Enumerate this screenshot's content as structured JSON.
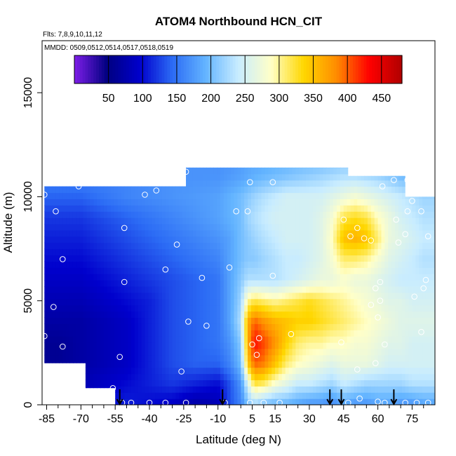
{
  "chart_data": {
    "type": "heatmap",
    "title": "ATOM4 Northbound HCN_CIT",
    "flights_note": "Flts: 7,8,9,10,11,12",
    "dates_note": "MMDD: 0509,0512,0514,0517,0518,0519",
    "xlabel": "Latitude (deg N)",
    "ylabel": "Altitude (m)",
    "xlim": [
      -87,
      85
    ],
    "ylim": [
      0,
      17500
    ],
    "x_tick_labels": [
      -85,
      -70,
      -55,
      -40,
      -25,
      -10,
      5,
      15,
      30,
      45,
      60,
      75
    ],
    "x_minor_ticks": [
      -80,
      -75,
      -65,
      -60,
      -50,
      -45,
      -35,
      -30,
      -20,
      -15,
      -5,
      0,
      10,
      20,
      25,
      35,
      40,
      50,
      55,
      65,
      70,
      80
    ],
    "y_ticks": [
      0,
      5000,
      10000,
      15000
    ],
    "colorbar": {
      "ticks": [
        50,
        100,
        150,
        200,
        250,
        300,
        350,
        400,
        450
      ],
      "range": [
        0,
        480
      ],
      "colors": [
        "#7e1ee8",
        "#000080",
        "#0000cd",
        "#2c6cf5",
        "#63b4ff",
        "#c8ecff",
        "#ffffc8",
        "#ffd700",
        "#ff8c00",
        "#ff0000",
        "#b00000"
      ]
    },
    "grid": false,
    "legend": "colorbar top",
    "lat_nodes": [
      -86,
      -80,
      -70,
      -60,
      -50,
      -40,
      -30,
      -20,
      -10,
      -5,
      0,
      3,
      6,
      10,
      15,
      20,
      25,
      30,
      35,
      40,
      45,
      50,
      55,
      60,
      65,
      70,
      75,
      80
    ],
    "alt_nodes_m": [
      0,
      1000,
      2000,
      3000,
      4000,
      5000,
      6000,
      7000,
      8000,
      9000,
      10000,
      11000,
      12000
    ],
    "values_ppt": [
      [
        80,
        80,
        90,
        100,
        110,
        100,
        90,
        70,
        80,
        130,
        160,
        200,
        220,
        200,
        190,
        190,
        180,
        170,
        170,
        160,
        180,
        170,
        170,
        180,
        180,
        170,
        170,
        180
      ],
      [
        70,
        70,
        80,
        90,
        100,
        110,
        120,
        110,
        100,
        130,
        170,
        250,
        320,
        310,
        280,
        260,
        240,
        240,
        230,
        220,
        240,
        230,
        220,
        220,
        220,
        220,
        230,
        230
      ],
      [
        60,
        60,
        70,
        80,
        90,
        110,
        130,
        140,
        140,
        160,
        200,
        340,
        400,
        390,
        350,
        310,
        290,
        280,
        270,
        260,
        270,
        270,
        270,
        260,
        250,
        250,
        250,
        250
      ],
      [
        60,
        60,
        70,
        80,
        90,
        110,
        130,
        140,
        150,
        170,
        210,
        360,
        430,
        410,
        380,
        340,
        310,
        300,
        300,
        290,
        290,
        280,
        280,
        270,
        260,
        260,
        250,
        250
      ],
      [
        70,
        70,
        70,
        80,
        90,
        110,
        130,
        140,
        150,
        180,
        230,
        360,
        400,
        380,
        360,
        350,
        340,
        340,
        330,
        320,
        310,
        300,
        290,
        280,
        270,
        260,
        260,
        260
      ],
      [
        80,
        80,
        80,
        90,
        100,
        110,
        130,
        140,
        150,
        180,
        220,
        300,
        320,
        310,
        300,
        310,
        320,
        330,
        320,
        310,
        300,
        290,
        280,
        270,
        260,
        260,
        250,
        250
      ],
      [
        90,
        90,
        90,
        100,
        110,
        120,
        130,
        140,
        150,
        180,
        210,
        230,
        230,
        230,
        230,
        240,
        250,
        260,
        270,
        270,
        280,
        270,
        270,
        260,
        250,
        240,
        240,
        240
      ],
      [
        100,
        100,
        100,
        110,
        120,
        130,
        140,
        150,
        160,
        180,
        200,
        210,
        210,
        220,
        230,
        240,
        240,
        250,
        260,
        280,
        310,
        310,
        300,
        280,
        260,
        250,
        240,
        230
      ],
      [
        110,
        110,
        110,
        120,
        130,
        140,
        150,
        160,
        170,
        180,
        200,
        210,
        220,
        230,
        240,
        250,
        250,
        250,
        260,
        290,
        350,
        360,
        350,
        310,
        270,
        260,
        250,
        240
      ],
      [
        120,
        120,
        120,
        130,
        140,
        150,
        160,
        170,
        180,
        190,
        200,
        220,
        230,
        240,
        250,
        250,
        250,
        250,
        260,
        280,
        320,
        330,
        320,
        290,
        270,
        250,
        240,
        230
      ],
      [
        140,
        140,
        140,
        150,
        160,
        165,
        170,
        175,
        180,
        190,
        200,
        210,
        220,
        230,
        240,
        250,
        250,
        250,
        250,
        260,
        270,
        280,
        270,
        260,
        250,
        240,
        230,
        220
      ],
      [
        160,
        160,
        160,
        160,
        160,
        165,
        170,
        170,
        170,
        175,
        180,
        185,
        190,
        195,
        200,
        205,
        210,
        215,
        220,
        225,
        230,
        230,
        225,
        220,
        210,
        200,
        195,
        190
      ],
      [
        170,
        170,
        170,
        170,
        170,
        170,
        170,
        170,
        170,
        170,
        175,
        180,
        180,
        180,
        185,
        185,
        190,
        190,
        190,
        195,
        200,
        200,
        195,
        190,
        185,
        180,
        180,
        180
      ]
    ],
    "data_coverage_bottom_m": [
      {
        "from": -86,
        "to": -68,
        "alt": 2000
      },
      {
        "from": -68,
        "to": -55,
        "alt": 800
      },
      {
        "from": -55,
        "to": 85,
        "alt": 0
      }
    ],
    "data_coverage_top_m": [
      {
        "from": -86,
        "to": -24,
        "alt": 10500
      },
      {
        "from": -24,
        "to": 47,
        "alt": 11400
      },
      {
        "from": 47,
        "to": 72,
        "alt": 11000
      },
      {
        "from": 72,
        "to": 85,
        "alt": 10000
      }
    ],
    "sample_points": [
      {
        "lat": -86,
        "alt": 10100
      },
      {
        "lat": -81,
        "alt": 9300
      },
      {
        "lat": -78,
        "alt": 7000
      },
      {
        "lat": -82,
        "alt": 4700
      },
      {
        "lat": -78,
        "alt": 2800
      },
      {
        "lat": -78,
        "alt": 1300
      },
      {
        "lat": -86,
        "alt": 3300
      },
      {
        "lat": -71,
        "alt": 10500
      },
      {
        "lat": -56,
        "alt": 800
      },
      {
        "lat": -53,
        "alt": 2300
      },
      {
        "lat": -51,
        "alt": 8500
      },
      {
        "lat": -51,
        "alt": 5900
      },
      {
        "lat": -42,
        "alt": 10100
      },
      {
        "lat": -37,
        "alt": 10300
      },
      {
        "lat": -33,
        "alt": 6500
      },
      {
        "lat": -32,
        "alt": 10900
      },
      {
        "lat": -28,
        "alt": 7700
      },
      {
        "lat": -26,
        "alt": 1600
      },
      {
        "lat": -23,
        "alt": 4000
      },
      {
        "lat": -15,
        "alt": 3800
      },
      {
        "lat": -17,
        "alt": 6100
      },
      {
        "lat": -24,
        "alt": 11200
      },
      {
        "lat": -5,
        "alt": 6600
      },
      {
        "lat": -2,
        "alt": 9300
      },
      {
        "lat": 3,
        "alt": 9300
      },
      {
        "lat": 5,
        "alt": 2900
      },
      {
        "lat": 7,
        "alt": 2400
      },
      {
        "lat": 8,
        "alt": 3200
      },
      {
        "lat": 4,
        "alt": 10700
      },
      {
        "lat": 14,
        "alt": 10700
      },
      {
        "lat": 14,
        "alt": 6200
      },
      {
        "lat": 22,
        "alt": 3400
      },
      {
        "lat": 44,
        "alt": 3000
      },
      {
        "lat": 45,
        "alt": 8900
      },
      {
        "lat": 48,
        "alt": 8100
      },
      {
        "lat": 51,
        "alt": 8500
      },
      {
        "lat": 51,
        "alt": 1700
      },
      {
        "lat": 54,
        "alt": 8000
      },
      {
        "lat": 57,
        "alt": 7900
      },
      {
        "lat": 56,
        "alt": 11200
      },
      {
        "lat": 57,
        "alt": 4800
      },
      {
        "lat": 59,
        "alt": 5600
      },
      {
        "lat": 60,
        "alt": 4200
      },
      {
        "lat": 59,
        "alt": 2000
      },
      {
        "lat": 61,
        "alt": 5000
      },
      {
        "lat": 61,
        "alt": 5900
      },
      {
        "lat": 62,
        "alt": 10500
      },
      {
        "lat": 63,
        "alt": 2900
      },
      {
        "lat": 67,
        "alt": 10800
      },
      {
        "lat": 68,
        "alt": 8900
      },
      {
        "lat": 69,
        "alt": 7800
      },
      {
        "lat": 72,
        "alt": 8200
      },
      {
        "lat": 73,
        "alt": 9300
      },
      {
        "lat": 73,
        "alt": 10800
      },
      {
        "lat": 75,
        "alt": 9800
      },
      {
        "lat": 76,
        "alt": 5200
      },
      {
        "lat": 79,
        "alt": 3500
      },
      {
        "lat": 79,
        "alt": 9300
      },
      {
        "lat": 82,
        "alt": 8100
      },
      {
        "lat": 80,
        "alt": 5600
      },
      {
        "lat": 81,
        "alt": 6000
      },
      {
        "lat": -52,
        "alt": 100
      },
      {
        "lat": -48,
        "alt": 100
      },
      {
        "lat": -40,
        "alt": 100
      },
      {
        "lat": -33,
        "alt": 100
      },
      {
        "lat": -24,
        "alt": 100
      },
      {
        "lat": -7,
        "alt": 100
      },
      {
        "lat": 4,
        "alt": 100
      },
      {
        "lat": 10,
        "alt": 100
      },
      {
        "lat": 17,
        "alt": 100
      },
      {
        "lat": 47,
        "alt": 100
      },
      {
        "lat": 52,
        "alt": 300
      },
      {
        "lat": 60,
        "alt": 150
      },
      {
        "lat": 63,
        "alt": 100
      },
      {
        "lat": 72,
        "alt": 100
      },
      {
        "lat": 77,
        "alt": 100
      },
      {
        "lat": 82,
        "alt": 100
      }
    ],
    "profile_arrows_lat": [
      -53,
      -8,
      39,
      44,
      67
    ],
    "marker_color": "#ffffff",
    "arrow_color": "#000000"
  }
}
